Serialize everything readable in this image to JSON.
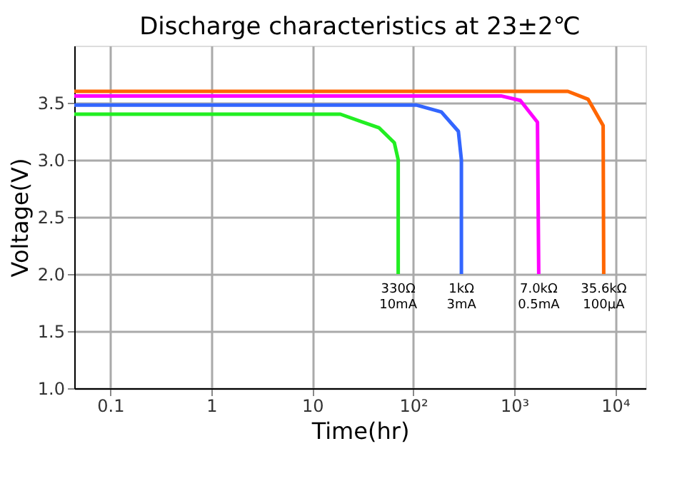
{
  "chart_data": {
    "type": "line",
    "title": "Discharge characteristics at 23±2℃",
    "xlabel": "Time(hr)",
    "ylabel": "Voltage(V)",
    "log": "x",
    "grid": true,
    "legend": false,
    "marker": "none",
    "line_style": "solid",
    "xlim": [
      0.044,
      20000
    ],
    "ylim": [
      1,
      4
    ],
    "xticks": [
      0.1,
      1,
      10,
      {
        "value": 100,
        "label": "10²"
      },
      {
        "value": 1000,
        "label": "10³"
      },
      {
        "value": 10000,
        "label": "10⁴"
      }
    ],
    "yticks": [
      {
        "value": 1,
        "label": "1.0"
      },
      1.5,
      {
        "value": 2,
        "label": "2.0"
      },
      2.5,
      {
        "value": 3,
        "label": "3.0"
      },
      3.5
    ],
    "series": [
      {
        "color": "#22ee22",
        "x": [
          0.044,
          6,
          19,
          46,
          65,
          71,
          71
        ],
        "values": [
          3.4,
          3.4,
          3.4,
          3.28,
          3.15,
          3.0,
          2.0
        ]
      },
      {
        "color": "#3366ff",
        "x": [
          0.044,
          107,
          190,
          280,
          300,
          300
        ],
        "values": [
          3.48,
          3.48,
          3.42,
          3.25,
          3.0,
          2.0
        ]
      },
      {
        "color": "#ff00ff",
        "x": [
          0.044,
          740,
          1150,
          1700,
          1750
        ],
        "values": [
          3.56,
          3.56,
          3.52,
          3.33,
          2.0
        ]
      },
      {
        "color": "#ff6600",
        "x": [
          0.044,
          3400,
          5400,
          7600,
          7700
        ],
        "values": [
          3.6,
          3.6,
          3.53,
          3.3,
          2.0
        ]
      }
    ],
    "annotations": [
      {
        "text": "330Ω\n10mA",
        "x": 71,
        "y": 2.0
      },
      {
        "text": "1kΩ\n3mA",
        "x": 300,
        "y": 2.0
      },
      {
        "text": "7.0kΩ\n0.5mA",
        "x": 1750,
        "y": 2.0
      },
      {
        "text": "35.6kΩ\n100μA",
        "x": 7700,
        "y": 2.0
      }
    ]
  }
}
